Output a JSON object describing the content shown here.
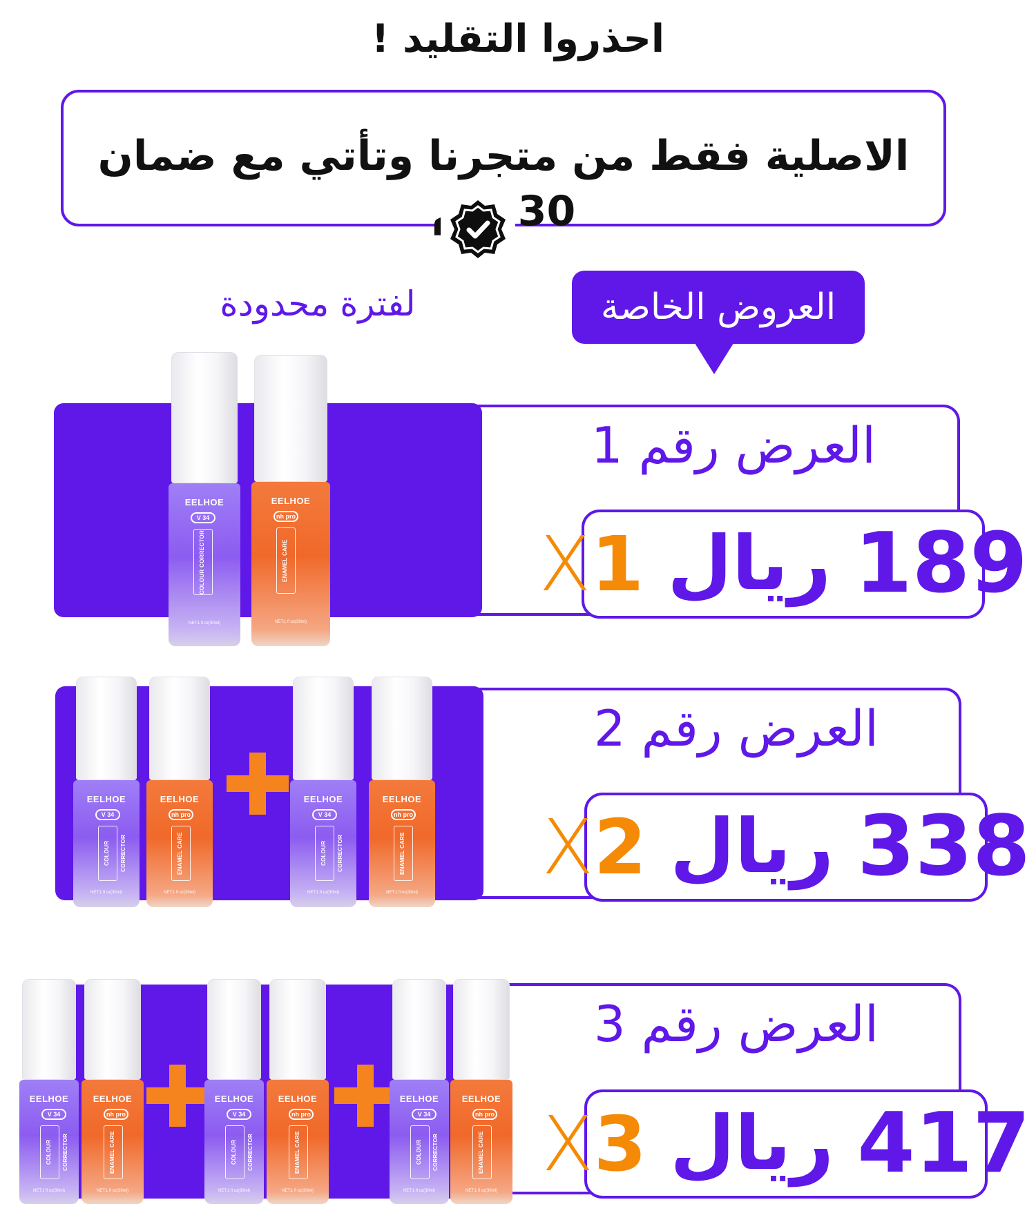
{
  "title": "احذروا التقليد !",
  "guarantee": {
    "text": "الاصلية فقط من متجرنا وتأتي مع ضمان 30 يوم",
    "badge_icon": "verified-badge-icon"
  },
  "offers_tag": "العروض الخاصة",
  "limited_time": "لفترة محدودة",
  "colors": {
    "brand_purple": "#5f18e8",
    "accent_orange": "#f58a07"
  },
  "product": {
    "brand": "EELHOE",
    "purple_tag": "V 34",
    "purple_label": "COLOUR CORRECTOR",
    "orange_tag": "nh pro",
    "orange_label": "ENAMEL CARE",
    "net": "NET:1 fl oz(30ml)"
  },
  "offers": [
    {
      "label": "العرض رقم 1",
      "amount": "189",
      "currency": "ريال",
      "qty_x": "X",
      "qty_n": "1"
    },
    {
      "label": "العرض رقم 2",
      "amount": "338",
      "currency": "ريال",
      "qty_x": "X",
      "qty_n": "2"
    },
    {
      "label": "العرض رقم 3",
      "amount": "417",
      "currency": "ريال",
      "qty_x": "X",
      "qty_n": "3"
    }
  ]
}
